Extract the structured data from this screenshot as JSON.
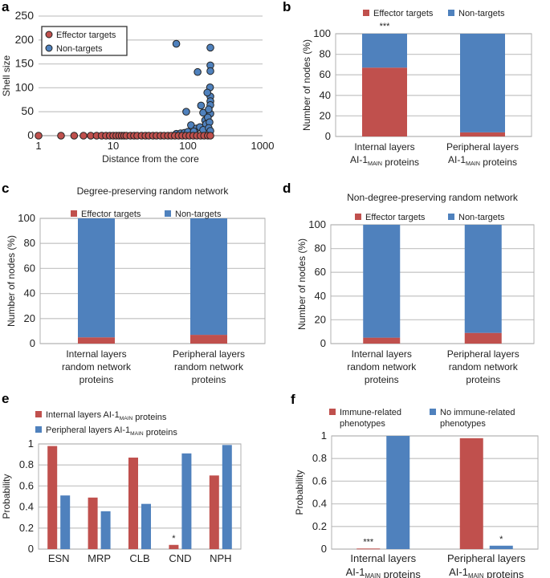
{
  "colors": {
    "red": "#c0504d",
    "blue": "#4f81bd",
    "grid": "#c8c8c8",
    "frame": "#b0b0b0"
  },
  "chart_data": [
    {
      "panel": "a",
      "type": "scatter",
      "xscale": "log",
      "xlim": [
        1,
        1000
      ],
      "ylim": [
        0,
        250
      ],
      "xticks": [
        "1",
        "10",
        "100",
        "1000"
      ],
      "yticks": [
        "0",
        "50",
        "100",
        "150",
        "200",
        "250"
      ],
      "xlabel": "Distance from the core",
      "ylabel": "Shell size",
      "grid": true,
      "legend": "top-left",
      "series": [
        {
          "name": "Effector targets",
          "color": "#c0504d",
          "points": [
            [
              1,
              0
            ],
            [
              2,
              0
            ],
            [
              3,
              0
            ],
            [
              4,
              0
            ],
            [
              5,
              0
            ],
            [
              6,
              0
            ],
            [
              7,
              0
            ],
            [
              8,
              0
            ],
            [
              9,
              0
            ],
            [
              10,
              0
            ],
            [
              11,
              0
            ],
            [
              12,
              0
            ],
            [
              13,
              0
            ],
            [
              14,
              0
            ],
            [
              15,
              0
            ],
            [
              17,
              0
            ],
            [
              19,
              0
            ],
            [
              21,
              0
            ],
            [
              24,
              0
            ],
            [
              27,
              0
            ],
            [
              30,
              0
            ],
            [
              34,
              0
            ],
            [
              38,
              0
            ],
            [
              43,
              0
            ],
            [
              48,
              0
            ],
            [
              54,
              0
            ],
            [
              60,
              0
            ],
            [
              67,
              0
            ],
            [
              75,
              0
            ],
            [
              84,
              0
            ],
            [
              94,
              0
            ],
            [
              105,
              0
            ],
            [
              118,
              0
            ],
            [
              132,
              0
            ],
            [
              148,
              0
            ],
            [
              165,
              0
            ],
            [
              185,
              0
            ],
            [
              200,
              0
            ]
          ]
        },
        {
          "name": "Non-targets",
          "color": "#4f81bd",
          "points": [
            [
              70,
              192
            ],
            [
              200,
              184
            ],
            [
              200,
              147
            ],
            [
              200,
              135
            ],
            [
              135,
              133
            ],
            [
              198,
              101
            ],
            [
              200,
              82
            ],
            [
              200,
              72
            ],
            [
              200,
              64
            ],
            [
              182,
              90
            ],
            [
              150,
              63
            ],
            [
              95,
              50
            ],
            [
              200,
              46
            ],
            [
              160,
              48
            ],
            [
              190,
              55
            ],
            [
              110,
              22
            ],
            [
              170,
              32
            ],
            [
              185,
              38
            ],
            [
              130,
              15
            ],
            [
              145,
              18
            ],
            [
              175,
              24
            ],
            [
              195,
              28
            ],
            [
              70,
              4
            ],
            [
              80,
              5
            ],
            [
              90,
              6
            ],
            [
              100,
              8
            ],
            [
              120,
              9
            ],
            [
              160,
              12
            ],
            [
              190,
              16
            ],
            [
              200,
              10
            ]
          ]
        }
      ]
    },
    {
      "panel": "b",
      "type": "bar",
      "stacked": true,
      "ylim": [
        0,
        100
      ],
      "yticks": [
        "0",
        "20",
        "40",
        "60",
        "80",
        "100"
      ],
      "ylabel": "Number of nodes (%)",
      "legend": "top",
      "categories": [
        [
          [
            {
              "t": "Internal layers"
            }
          ],
          [
            {
              "t": "AI-1"
            },
            {
              "t": "MAIN",
              "sub": true
            },
            {
              "t": " proteins"
            }
          ]
        ],
        [
          [
            {
              "t": "Peripheral layers"
            }
          ],
          [
            {
              "t": "AI-1"
            },
            {
              "t": "MAIN",
              "sub": true
            },
            {
              "t": " proteins"
            }
          ]
        ]
      ],
      "series": [
        {
          "name": "Effector targets",
          "values": [
            67,
            4
          ]
        },
        {
          "name": "Non-targets",
          "values": [
            33,
            96
          ]
        }
      ],
      "annotations": [
        "***",
        ""
      ]
    },
    {
      "panel": "c",
      "type": "bar",
      "stacked": true,
      "title": "Degree-preserving random network",
      "ylim": [
        0,
        100
      ],
      "yticks": [
        "0",
        "20",
        "40",
        "60",
        "80",
        "100"
      ],
      "ylabel": "Number of nodes (%)",
      "legend": "top",
      "categories": [
        [
          [
            {
              "t": "Internal layers"
            }
          ],
          [
            {
              "t": "random network"
            }
          ],
          [
            {
              "t": "proteins"
            }
          ]
        ],
        [
          [
            {
              "t": "Peripheral layers"
            }
          ],
          [
            {
              "t": "random network"
            }
          ],
          [
            {
              "t": "proteins"
            }
          ]
        ]
      ],
      "series": [
        {
          "name": "Effector targets",
          "values": [
            5,
            7
          ]
        },
        {
          "name": "Non-targets",
          "values": [
            95,
            93
          ]
        }
      ]
    },
    {
      "panel": "d",
      "type": "bar",
      "stacked": true,
      "title": "Non-degree-preserving random network",
      "ylim": [
        0,
        100
      ],
      "yticks": [
        "0",
        "20",
        "40",
        "60",
        "80",
        "100"
      ],
      "ylabel": "Number of nodes (%)",
      "legend": "top",
      "categories": [
        [
          [
            {
              "t": "Internal layers"
            }
          ],
          [
            {
              "t": "random network"
            }
          ],
          [
            {
              "t": "proteins"
            }
          ]
        ],
        [
          [
            {
              "t": "Peripheral layers"
            }
          ],
          [
            {
              "t": "random network"
            }
          ],
          [
            {
              "t": "proteins"
            }
          ]
        ]
      ],
      "series": [
        {
          "name": "Effector targets",
          "values": [
            5,
            9
          ]
        },
        {
          "name": "Non-targets",
          "values": [
            95,
            91
          ]
        }
      ]
    },
    {
      "panel": "e",
      "type": "bar",
      "ylim": [
        0,
        1
      ],
      "yticks": [
        "0",
        "0.2",
        "0.4",
        "0.6",
        "0.8",
        "1"
      ],
      "ylabel": "Probability",
      "legend": "top-left",
      "categories": [
        [
          [
            {
              "t": "ESN"
            }
          ]
        ],
        [
          [
            {
              "t": "MRP"
            }
          ]
        ],
        [
          [
            {
              "t": "CLB"
            }
          ]
        ],
        [
          [
            {
              "t": "CND"
            }
          ]
        ],
        [
          [
            {
              "t": "NPH"
            }
          ]
        ]
      ],
      "series": [
        {
          "name": [
            {
              "t": "Internal layers AI-1"
            },
            {
              "t": "MAIN",
              "sub": true
            },
            {
              "t": " proteins"
            }
          ],
          "values": [
            0.98,
            0.49,
            0.87,
            0.04,
            0.7
          ]
        },
        {
          "name": [
            {
              "t": "Peripheral layers AI-1"
            },
            {
              "t": "MAIN",
              "sub": true
            },
            {
              "t": " proteins"
            }
          ],
          "values": [
            0.51,
            0.36,
            0.43,
            0.91,
            0.99
          ]
        }
      ],
      "annotations": [
        [
          "",
          "",
          "",
          "*",
          ""
        ],
        [
          "",
          "",
          "",
          "",
          ""
        ]
      ]
    },
    {
      "panel": "f",
      "type": "bar",
      "ylim": [
        0,
        1
      ],
      "yticks": [
        "0",
        "0.2",
        "0.4",
        "0.6",
        "0.8",
        "1"
      ],
      "ylabel": "Probability",
      "legend": "top",
      "categories": [
        [
          [
            {
              "t": "Internal layers"
            }
          ],
          [
            {
              "t": "AI-1"
            },
            {
              "t": "MAIN",
              "sub": true
            },
            {
              "t": " proteins"
            }
          ]
        ],
        [
          [
            {
              "t": "Peripheral layers"
            }
          ],
          [
            {
              "t": "AI-1"
            },
            {
              "t": "MAIN",
              "sub": true
            },
            {
              "t": " proteins"
            }
          ]
        ]
      ],
      "series": [
        {
          "name": [
            "Immune-related",
            "phenotypes"
          ],
          "values": [
            0.005,
            0.98
          ]
        },
        {
          "name": [
            "No immune-related",
            "phenotypes"
          ],
          "values": [
            1.0,
            0.03
          ]
        }
      ],
      "annotations": [
        [
          "***",
          ""
        ],
        [
          "",
          "*"
        ]
      ]
    }
  ]
}
